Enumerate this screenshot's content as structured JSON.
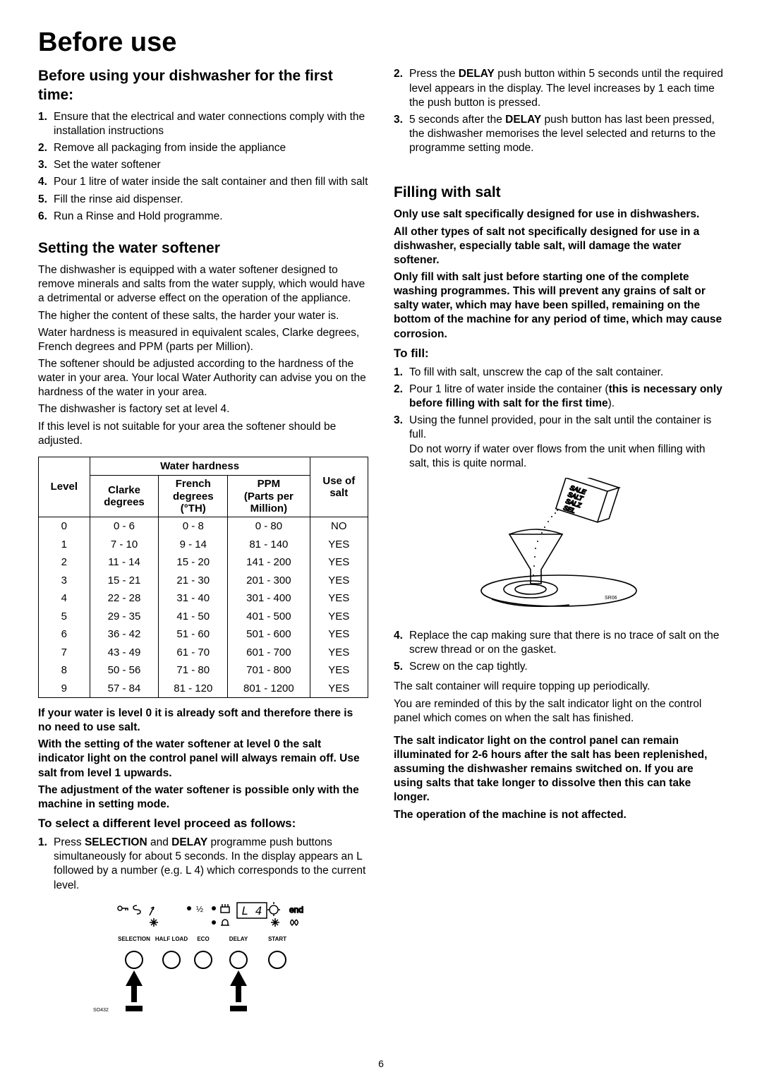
{
  "page": {
    "number": "6"
  },
  "title": "Before use",
  "left": {
    "h_firsttime": "Before using your dishwasher for the first time:",
    "list_firsttime": [
      {
        "n": "1.",
        "t": "Ensure that the electrical and water connections comply with the installation instructions"
      },
      {
        "n": "2.",
        "t": "Remove all packaging from inside the appliance"
      },
      {
        "n": "3.",
        "t": "Set the water softener"
      },
      {
        "n": "4.",
        "t": "Pour 1 litre of water inside the salt container and then fill with salt"
      },
      {
        "n": "5.",
        "t": "Fill the rinse aid dispenser."
      },
      {
        "n": "6.",
        "t": "Run a Rinse and Hold programme."
      }
    ],
    "h_softener": "Setting the water softener",
    "softener_paras": [
      "The dishwasher is equipped with a water softener designed to remove minerals and salts from the water supply, which would have a detrimental or adverse effect on the operation of the appliance.",
      "The higher the content of these salts, the harder your water is.",
      "Water hardness is measured in equivalent scales, Clarke degrees, French degrees and PPM (parts per Million).",
      "The softener should be adjusted according to the hardness of the water in your area. Your local Water Authority can advise you on the hardness of the water in your area.",
      "The dishwasher is factory set at level 4.",
      "If this level is not suitable for your area the softener should be adjusted."
    ],
    "table": {
      "hdr_hardness": "Water hardness",
      "hdr_level": "Level",
      "hdr_clarke_a": "Clarke",
      "hdr_clarke_b": "degrees",
      "hdr_french_a": "French",
      "hdr_french_b": "degrees",
      "hdr_french_c": "(°TH)",
      "hdr_ppm_a": "PPM",
      "hdr_ppm_b": "(Parts per",
      "hdr_ppm_c": "Million)",
      "hdr_use_a": "Use of",
      "hdr_use_b": "salt",
      "rows": [
        {
          "level": "0",
          "clarke": "0 - 6",
          "french": "0 - 8",
          "ppm": "0 - 80",
          "salt": "NO"
        },
        {
          "level": "1",
          "clarke": "7 - 10",
          "french": "9 - 14",
          "ppm": "81 - 140",
          "salt": "YES"
        },
        {
          "level": "2",
          "clarke": "11 - 14",
          "french": "15 - 20",
          "ppm": "141 - 200",
          "salt": "YES"
        },
        {
          "level": "3",
          "clarke": "15 - 21",
          "french": "21 - 30",
          "ppm": "201 - 300",
          "salt": "YES"
        },
        {
          "level": "4",
          "clarke": "22 - 28",
          "french": "31 - 40",
          "ppm": "301 - 400",
          "salt": "YES"
        },
        {
          "level": "5",
          "clarke": "29 - 35",
          "french": "41 - 50",
          "ppm": "401 - 500",
          "salt": "YES"
        },
        {
          "level": "6",
          "clarke": "36 - 42",
          "french": "51 - 60",
          "ppm": "501 - 600",
          "salt": "YES"
        },
        {
          "level": "7",
          "clarke": "43 - 49",
          "french": "61 - 70",
          "ppm": "601 - 700",
          "salt": "YES"
        },
        {
          "level": "8",
          "clarke": "50 - 56",
          "french": "71 - 80",
          "ppm": "701 - 800",
          "salt": "YES"
        },
        {
          "level": "9",
          "clarke": "57 - 84",
          "french": "81 - 120",
          "ppm": "801 - 1200",
          "salt": "YES"
        }
      ]
    },
    "after_table_bold": [
      "If your water is level 0 it is already soft and therefore there is no need to use salt.",
      "With the setting of the water softener at level 0 the salt indicator light on the control panel will always remain off. Use salt from level 1 upwards.",
      "The adjustment of the water softener is possible only with the machine in setting mode."
    ],
    "h_select": "To select a different level proceed as follows:",
    "select1_a": "Press ",
    "select1_b": "SELECTION",
    "select1_c": " and ",
    "select1_d": "DELAY",
    "select1_e": " programme push buttons simultaneously for about 5 seconds. In the display appears an L followed by a number (e.g. L 4) which corresponds to the current level.",
    "panel": {
      "btn_selection": "SELECTION",
      "btn_half": "HALF LOAD",
      "btn_eco": "ECO",
      "btn_delay": "DELAY",
      "btn_start": "START",
      "display": "L  4",
      "ref": "SO432"
    }
  },
  "right": {
    "step2_a": "Press the ",
    "step2_b": "DELAY",
    "step2_c": " push button within 5 seconds until the required level appears in the display. The level increases by 1 each time the push button is pressed.",
    "step3_a": "5 seconds after the ",
    "step3_b": "DELAY",
    "step3_c": " push button has last been pressed, the dishwasher memorises the level selected and returns to the programme setting mode.",
    "h_fill": "Filling with salt",
    "fill_bold": [
      "Only use salt specifically designed for use in dishwashers.",
      "All other types of salt not specifically designed for use in a dishwasher, especially table salt, will damage the water softener.",
      "Only fill with salt just before starting one of the complete washing programmes. This will prevent any grains of salt or salty water, which may have been spilled, remaining on the bottom of the machine for any period of time, which may cause corrosion."
    ],
    "h_tofill": "To fill:",
    "tofill_1": "To fill with salt, unscrew the cap of the salt container.",
    "tofill_2a": "Pour 1 litre of water inside the container (",
    "tofill_2b": "this is necessary only before filling with salt for the first time",
    "tofill_2c": ").",
    "tofill_3a": "Using the funnel provided, pour in the salt until the container is full.",
    "tofill_3b": "Do not worry if water over flows from the unit when filling with salt, this is quite normal.",
    "saltfig": {
      "label_sale": "SALE",
      "label_salt": "SALT",
      "label_salz": "SALZ",
      "label_sel": "SEL",
      "ref": "SR06"
    },
    "tofill_4": "Replace the cap making sure that there is no trace of salt on the screw thread or on the gasket.",
    "tofill_5": "Screw on the cap tightly.",
    "after_fill_p": [
      "The salt container will require topping up periodically.",
      "You are reminded of this by the salt indicator light on the control panel which comes on when the salt has finished."
    ],
    "after_fill_bold": [
      "The salt indicator light on the control panel can remain illuminated for 2-6 hours after the salt has been replenished, assuming the dishwasher remains switched on. If you are using salts that take longer to dissolve then this can take longer.",
      "The operation of the machine is not affected."
    ]
  }
}
